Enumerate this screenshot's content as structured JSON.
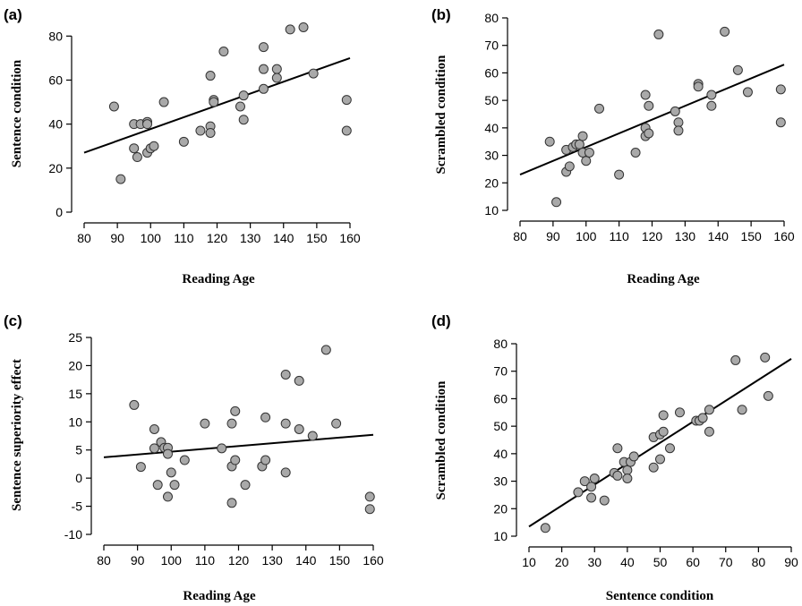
{
  "chart_data": [
    {
      "panel": "(a)",
      "type": "scatter",
      "xlabel": "Reading Age",
      "ylabel": "Sentence condition",
      "xlim": [
        80,
        160
      ],
      "ylim": [
        0,
        85
      ],
      "xticks": [
        80,
        90,
        100,
        110,
        120,
        130,
        140,
        150,
        160
      ],
      "yticks": [
        0,
        20,
        40,
        60,
        80
      ],
      "fit_line": [
        [
          80,
          27
        ],
        [
          160,
          70
        ]
      ],
      "points": [
        [
          89,
          48
        ],
        [
          91,
          15
        ],
        [
          95,
          40
        ],
        [
          95,
          29
        ],
        [
          96,
          25
        ],
        [
          97,
          40
        ],
        [
          99,
          41
        ],
        [
          99,
          27
        ],
        [
          99,
          40
        ],
        [
          100,
          29
        ],
        [
          101,
          30
        ],
        [
          104,
          50
        ],
        [
          110,
          32
        ],
        [
          115,
          37
        ],
        [
          118,
          62
        ],
        [
          118,
          39
        ],
        [
          118,
          36
        ],
        [
          119,
          51
        ],
        [
          119,
          50
        ],
        [
          122,
          73
        ],
        [
          127,
          48
        ],
        [
          128,
          53
        ],
        [
          128,
          42
        ],
        [
          134,
          75
        ],
        [
          134,
          65
        ],
        [
          134,
          56
        ],
        [
          138,
          65
        ],
        [
          138,
          61
        ],
        [
          142,
          83
        ],
        [
          146,
          84
        ],
        [
          149,
          63
        ],
        [
          159,
          51
        ],
        [
          159,
          37
        ]
      ]
    },
    {
      "panel": "(b)",
      "type": "scatter",
      "xlabel": "Reading Age",
      "ylabel": "Scrambled condition",
      "xlim": [
        80,
        160
      ],
      "ylim": [
        10,
        80
      ],
      "xticks": [
        80,
        90,
        100,
        110,
        120,
        130,
        140,
        150,
        160
      ],
      "yticks": [
        10,
        20,
        30,
        40,
        50,
        60,
        70,
        80
      ],
      "fit_line": [
        [
          80,
          23
        ],
        [
          160,
          63
        ]
      ],
      "points": [
        [
          89,
          35
        ],
        [
          91,
          13
        ],
        [
          94,
          32
        ],
        [
          94,
          24
        ],
        [
          95,
          26
        ],
        [
          96,
          33
        ],
        [
          97,
          34
        ],
        [
          98,
          34
        ],
        [
          99,
          37
        ],
        [
          99,
          31
        ],
        [
          100,
          28
        ],
        [
          101,
          31
        ],
        [
          104,
          47
        ],
        [
          110,
          23
        ],
        [
          115,
          31
        ],
        [
          118,
          52
        ],
        [
          118,
          40
        ],
        [
          118,
          37
        ],
        [
          119,
          48
        ],
        [
          119,
          38
        ],
        [
          122,
          74
        ],
        [
          127,
          46
        ],
        [
          128,
          42
        ],
        [
          128,
          39
        ],
        [
          134,
          56
        ],
        [
          134,
          55
        ],
        [
          138,
          52
        ],
        [
          138,
          48
        ],
        [
          142,
          75
        ],
        [
          146,
          61
        ],
        [
          149,
          53
        ],
        [
          159,
          54
        ],
        [
          159,
          42
        ]
      ]
    },
    {
      "panel": "(c)",
      "type": "scatter",
      "xlabel": "Reading Age",
      "ylabel": "Sentence superiority effect",
      "xlim": [
        80,
        160
      ],
      "ylim": [
        -10,
        25
      ],
      "xticks": [
        80,
        90,
        100,
        110,
        120,
        130,
        140,
        150,
        160
      ],
      "yticks": [
        -10,
        -5,
        0,
        5,
        10,
        15,
        20,
        25
      ],
      "fit_line": [
        [
          80,
          3.7
        ],
        [
          160,
          7.7
        ]
      ],
      "points": [
        [
          89,
          13
        ],
        [
          91,
          2
        ],
        [
          95,
          8.7
        ],
        [
          95,
          5.3
        ],
        [
          96,
          -1.2
        ],
        [
          97,
          6.4
        ],
        [
          98,
          5.4
        ],
        [
          99,
          5.4
        ],
        [
          99,
          4.3
        ],
        [
          99,
          -3.3
        ],
        [
          100,
          1
        ],
        [
          101,
          -1.2
        ],
        [
          104,
          3.2
        ],
        [
          110,
          9.7
        ],
        [
          115,
          5.3
        ],
        [
          118,
          9.7
        ],
        [
          118,
          2.1
        ],
        [
          118,
          -4.4
        ],
        [
          119,
          11.9
        ],
        [
          119,
          3.2
        ],
        [
          122,
          -1.2
        ],
        [
          127,
          2.1
        ],
        [
          128,
          10.8
        ],
        [
          128,
          3.2
        ],
        [
          134,
          18.4
        ],
        [
          134,
          9.7
        ],
        [
          134,
          1
        ],
        [
          138,
          17.3
        ],
        [
          138,
          8.7
        ],
        [
          142,
          7.5
        ],
        [
          146,
          22.8
        ],
        [
          149,
          9.7
        ],
        [
          159,
          -3.3
        ],
        [
          159,
          -5.5
        ]
      ]
    },
    {
      "panel": "(d)",
      "type": "scatter",
      "xlabel": "Sentence condition",
      "ylabel": "Scrambled condition",
      "xlim": [
        10,
        90
      ],
      "ylim": [
        10,
        80
      ],
      "xticks": [
        10,
        20,
        30,
        40,
        50,
        60,
        70,
        80,
        90
      ],
      "yticks": [
        10,
        20,
        30,
        40,
        50,
        60,
        70,
        80
      ],
      "fit_line": [
        [
          10,
          13.5
        ],
        [
          90,
          74.5
        ]
      ],
      "points": [
        [
          15,
          13
        ],
        [
          25,
          26
        ],
        [
          27,
          30
        ],
        [
          29,
          28
        ],
        [
          29,
          24
        ],
        [
          30,
          31
        ],
        [
          33,
          23
        ],
        [
          36,
          33
        ],
        [
          37,
          42
        ],
        [
          37,
          32
        ],
        [
          39,
          37
        ],
        [
          40,
          34
        ],
        [
          40,
          31
        ],
        [
          41,
          37
        ],
        [
          42,
          39
        ],
        [
          48,
          35
        ],
        [
          48,
          46
        ],
        [
          50,
          47
        ],
        [
          50,
          38
        ],
        [
          51,
          54
        ],
        [
          51,
          48
        ],
        [
          53,
          42
        ],
        [
          56,
          55
        ],
        [
          61,
          52
        ],
        [
          62,
          52
        ],
        [
          63,
          53
        ],
        [
          65,
          56
        ],
        [
          65,
          48
        ],
        [
          73,
          74
        ],
        [
          75,
          56
        ],
        [
          82,
          75
        ],
        [
          83,
          61
        ]
      ]
    }
  ]
}
